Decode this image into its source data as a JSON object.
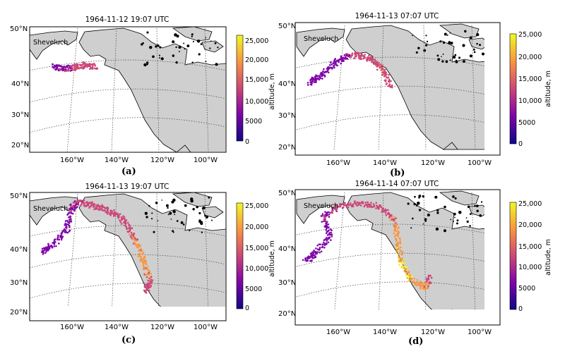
{
  "panels": [
    {
      "id": "a",
      "title": "1964-11-12 19:07 UTC",
      "caption": "(a)",
      "volcano": "Sheveluch",
      "lat_labels": [
        "50°N",
        "40°N",
        "30°N",
        "20°N"
      ],
      "lon_labels": [
        "160°W",
        "140°W",
        "120°W",
        "100°W"
      ],
      "colorbar": {
        "label": "altitude, m",
        "ticks": [
          "25,000",
          "20,000",
          "15,000",
          "10,000",
          "5000",
          "0"
        ]
      }
    },
    {
      "id": "b",
      "title": "1964-11-13 07:07 UTC",
      "caption": "(b)",
      "volcano": "Sheveluch",
      "lat_labels": [
        "50°N",
        "40°N",
        "30°N",
        "20°N"
      ],
      "lon_labels": [
        "160°W",
        "140°W",
        "120°W",
        "100°W"
      ],
      "colorbar": {
        "label": "altitude, m",
        "ticks": [
          "25,000",
          "20,000",
          "15,000",
          "10,000",
          "5000",
          "0"
        ]
      }
    },
    {
      "id": "c",
      "title": "1964-11-13 19:07 UTC",
      "caption": "(c)",
      "volcano": "Sheveluch",
      "lat_labels": [
        "50°N",
        "40°N",
        "30°N",
        "20°N"
      ],
      "lon_labels": [
        "160°W",
        "140°W",
        "120°W",
        "100°W"
      ],
      "colorbar": {
        "label": "altitude, m",
        "ticks": [
          "25,000",
          "20,000",
          "15,000",
          "10,000",
          "5000",
          "0"
        ]
      }
    },
    {
      "id": "d",
      "title": "1964-11-14 07:07 UTC",
      "caption": "(d)",
      "volcano": "Sheveluch",
      "lat_labels": [
        "50°N",
        "40°N",
        "30°N",
        "20°N"
      ],
      "lon_labels": [
        "160°W",
        "140°W",
        "120°W",
        "100°W"
      ],
      "colorbar": {
        "label": "altitude, m",
        "ticks": [
          "25,000",
          "20,000",
          "15,000",
          "10,000",
          "5000",
          "0"
        ]
      }
    }
  ],
  "colors": {
    "land": "#cfcfcf",
    "ocean": "#ffffff",
    "colormap": [
      "#0d0887",
      "#7e03a8",
      "#cc4778",
      "#f89540",
      "#f0f921"
    ]
  }
}
